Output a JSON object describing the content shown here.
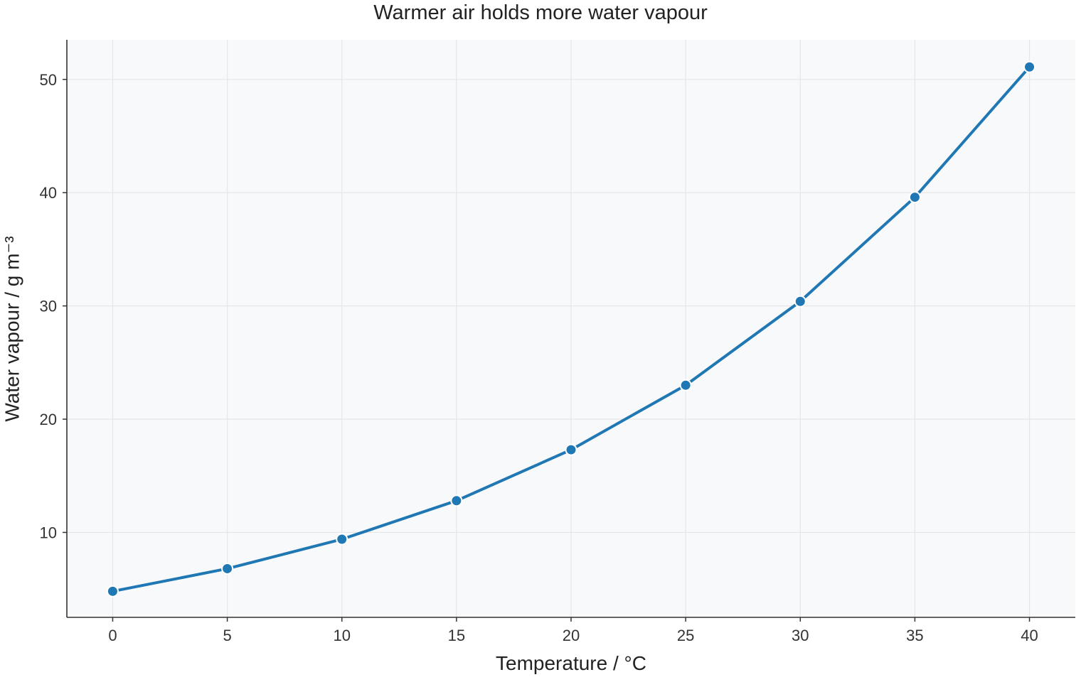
{
  "chart_data": {
    "type": "line",
    "title": "Warmer air holds more water vapour",
    "xlabel": "Temperature / °C",
    "ylabel": "Water vapour / g m⁻³",
    "x": [
      0,
      5,
      10,
      15,
      20,
      25,
      30,
      35,
      40
    ],
    "series": [
      {
        "values": [
          4.8,
          6.8,
          9.4,
          12.8,
          17.3,
          23.0,
          30.4,
          39.6,
          51.1
        ]
      }
    ],
    "xlim": [
      -2,
      42
    ],
    "ylim": [
      2.5,
      53.5
    ],
    "xticks": [
      "0",
      "5",
      "10",
      "15",
      "20",
      "25",
      "30",
      "35",
      "40"
    ],
    "yticks": [
      "10",
      "20",
      "30",
      "40",
      "50"
    ],
    "grid": true,
    "colors": {
      "line": "#1f77b4",
      "plot_background": "#f8f9fa",
      "grid": "#e6e6e6",
      "axis": "#333333",
      "marker_edge": "#ffffff"
    }
  }
}
